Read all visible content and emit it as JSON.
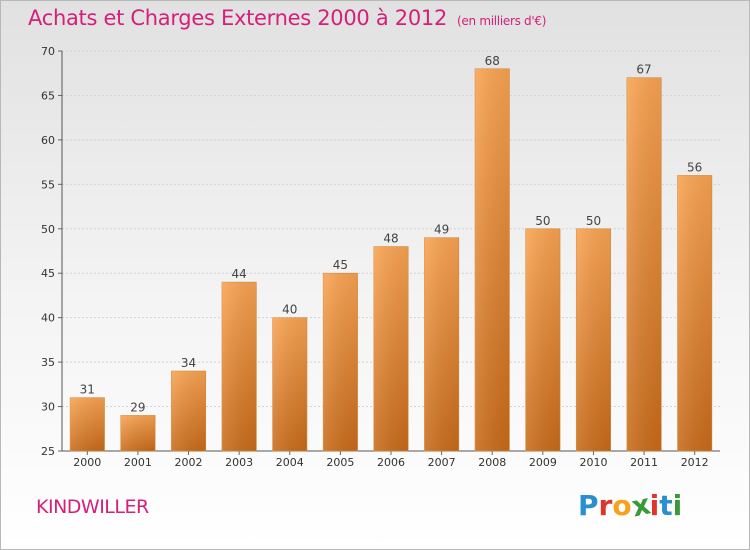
{
  "title": "Achats et Charges Externes 2000 à 2012",
  "unit": "(en milliers d'€)",
  "commune": "KINDWILLER",
  "logo": {
    "letters": [
      "P",
      "r",
      "o",
      "x",
      "i",
      "t",
      "i"
    ],
    "colors": [
      "#2a8fd0",
      "#e0352a",
      "#f6a21c",
      "#3a9a3a",
      "#e0352a",
      "#2a8fd0",
      "#3a9a3a"
    ]
  },
  "chart_data": {
    "type": "bar",
    "categories": [
      "2000",
      "2001",
      "2002",
      "2003",
      "2004",
      "2005",
      "2006",
      "2007",
      "2008",
      "2009",
      "2010",
      "2011",
      "2012"
    ],
    "values": [
      31,
      29,
      34,
      44,
      40,
      45,
      48,
      49,
      68,
      50,
      50,
      67,
      56
    ],
    "ylim": [
      25,
      70
    ],
    "yticks": [
      25,
      30,
      35,
      40,
      45,
      50,
      55,
      60,
      65,
      70
    ],
    "bar_color_top": "#f8a352",
    "bar_color_bottom": "#c86a1a",
    "grid": true
  }
}
